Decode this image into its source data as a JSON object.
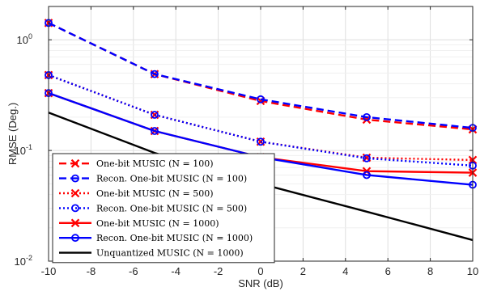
{
  "chart_data": {
    "type": "line",
    "xlabel": "SNR (dB)",
    "ylabel": "RMSE (Deg.)",
    "x_scale": "linear",
    "y_scale": "log",
    "xlim": [
      -10,
      10
    ],
    "ylim": [
      0.01,
      2
    ],
    "xticks": [
      -10,
      -8,
      -6,
      -4,
      -2,
      0,
      2,
      4,
      6,
      8,
      10
    ],
    "xtick_labels": [
      "-10",
      "-8",
      "-6",
      "-4",
      "-2",
      "0",
      "2",
      "4",
      "6",
      "8",
      "10"
    ],
    "yticks": [
      0.01,
      0.1,
      1
    ],
    "ytick_labels": [
      {
        "base": "10",
        "exp": "-2"
      },
      {
        "base": "10",
        "exp": "-1"
      },
      {
        "base": "10",
        "exp": "0"
      }
    ],
    "grid": true,
    "legend_position": "bottom-left",
    "series": [
      {
        "name": "One-bit MUSIC (N = 100)",
        "color": "#ff0000",
        "line_style": "dashed",
        "marker": "x",
        "x": [
          -10,
          -5,
          0,
          5,
          10
        ],
        "y": [
          1.42,
          0.49,
          0.28,
          0.19,
          0.155
        ]
      },
      {
        "name": "Recon. One-bit MUSIC (N = 100)",
        "color": "#0000ff",
        "line_style": "dashed",
        "marker": "o",
        "x": [
          -10,
          -5,
          0,
          5,
          10
        ],
        "y": [
          1.42,
          0.49,
          0.29,
          0.2,
          0.16
        ]
      },
      {
        "name": "One-bit MUSIC (N = 500)",
        "color": "#ff0000",
        "line_style": "dotted",
        "marker": "x",
        "x": [
          -10,
          -5,
          0,
          5,
          10
        ],
        "y": [
          0.48,
          0.21,
          0.12,
          0.086,
          0.082
        ]
      },
      {
        "name": "Recon. One-bit MUSIC (N = 500)",
        "color": "#0000ff",
        "line_style": "dotted",
        "marker": "o",
        "x": [
          -10,
          -5,
          0,
          5,
          10
        ],
        "y": [
          0.48,
          0.21,
          0.12,
          0.085,
          0.073
        ]
      },
      {
        "name": "One-bit MUSIC (N = 1000)",
        "color": "#ff0000",
        "line_style": "solid",
        "marker": "x",
        "x": [
          -10,
          -5,
          0,
          5,
          10
        ],
        "y": [
          0.33,
          0.15,
          0.087,
          0.065,
          0.063
        ]
      },
      {
        "name": "Recon. One-bit MUSIC (N = 1000)",
        "color": "#0000ff",
        "line_style": "solid",
        "marker": "o",
        "x": [
          -10,
          -5,
          0,
          5,
          10
        ],
        "y": [
          0.33,
          0.15,
          0.087,
          0.06,
          0.049
        ]
      },
      {
        "name": "Unquantized MUSIC (N = 1000)",
        "color": "#000000",
        "line_style": "solid",
        "marker": "none",
        "x": [
          -10,
          -5,
          0,
          5,
          10
        ],
        "y": [
          0.22,
          0.095,
          0.05,
          0.028,
          0.0155
        ]
      }
    ]
  }
}
